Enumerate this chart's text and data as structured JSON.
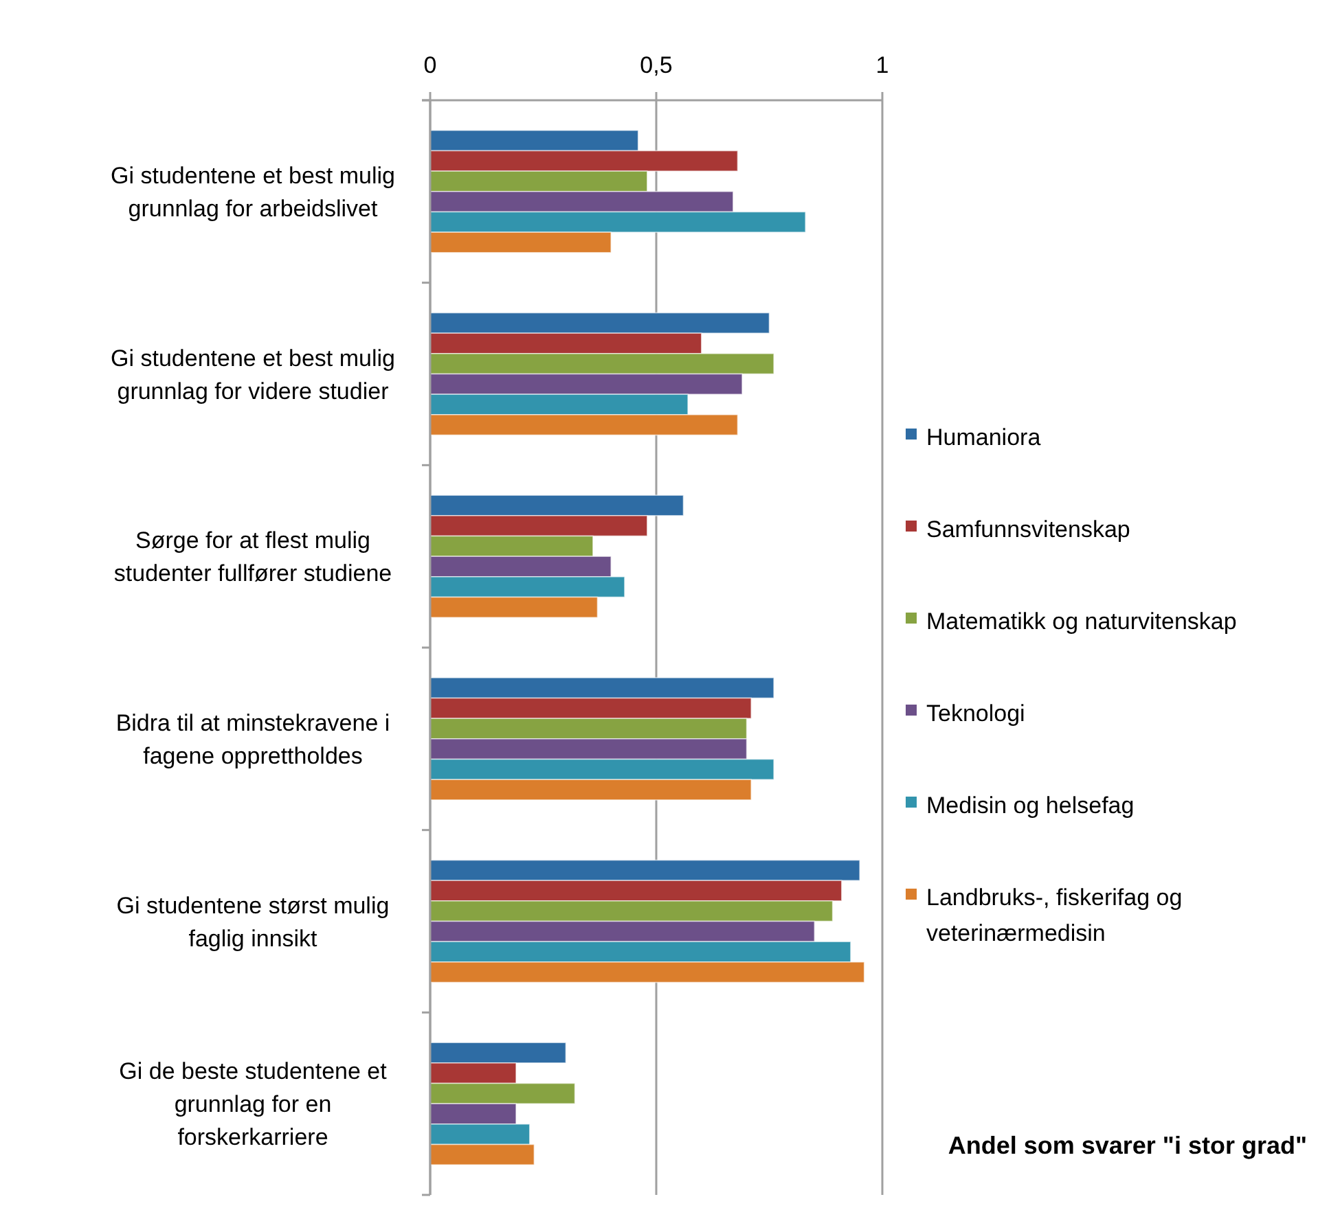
{
  "chart_data": {
    "type": "bar",
    "orientation": "horizontal",
    "xlabel": "Andel som svarer \"i stor grad\"",
    "categories": [
      "Gi studentene et best mulig grunnlag for arbeidslivet",
      "Gi studentene et best mulig grunnlag for videre studier",
      "Sørge for at flest mulig studenter fullfører studiene",
      "Bidra til at minstekravene i fagene opprettholdes",
      "Gi studentene størst mulig faglig innsikt",
      "Gi de beste studentene et grunnlag for en forskerkarriere"
    ],
    "series": [
      {
        "name": "Humaniora",
        "color": "#2e6ca4",
        "values": [
          0.46,
          0.75,
          0.56,
          0.76,
          0.95,
          0.3
        ]
      },
      {
        "name": "Samfunnsvitenskap",
        "color": "#a83735",
        "values": [
          0.68,
          0.6,
          0.48,
          0.71,
          0.91,
          0.19
        ]
      },
      {
        "name": "Matematikk og naturvitenskap",
        "color": "#87a342",
        "values": [
          0.48,
          0.76,
          0.36,
          0.7,
          0.89,
          0.32
        ]
      },
      {
        "name": "Teknologi",
        "color": "#6c5089",
        "values": [
          0.67,
          0.69,
          0.4,
          0.7,
          0.85,
          0.19
        ]
      },
      {
        "name": "Medisin og helsefag",
        "color": "#3294ad",
        "values": [
          0.83,
          0.57,
          0.43,
          0.76,
          0.93,
          0.22
        ]
      },
      {
        "name": "Landbruks-, fiskerifag og veterinærmedisin",
        "color": "#db7e2c",
        "values": [
          0.4,
          0.68,
          0.37,
          0.71,
          0.96,
          0.23
        ]
      }
    ],
    "xlim": [
      0,
      1
    ],
    "xticks": [
      0,
      {
        "value": 0.5,
        "label": "0,5"
      },
      1
    ],
    "grid": "x",
    "legend": "right"
  }
}
